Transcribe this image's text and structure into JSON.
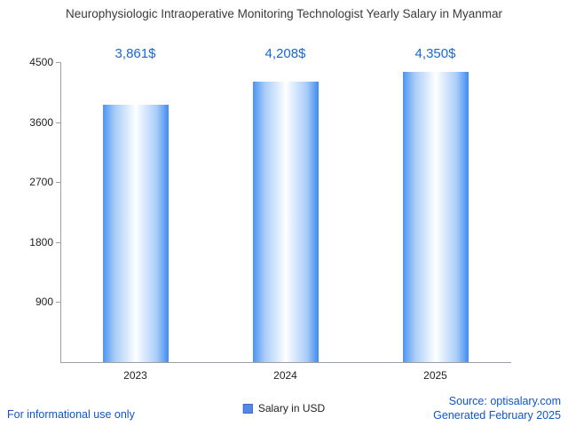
{
  "chart_data": {
    "type": "bar",
    "title": "Neurophysiologic Intraoperative Monitoring Technologist Yearly Salary in Myanmar",
    "categories": [
      "2023",
      "2024",
      "2025"
    ],
    "values": [
      3861,
      4208,
      4350
    ],
    "value_labels": [
      "3,861$",
      "4,208$",
      "4,350$"
    ],
    "ylim": [
      0,
      4500
    ],
    "yticks": [
      900,
      1800,
      2700,
      3600,
      4500
    ],
    "legend": "Salary in USD",
    "bar_color": "#4b94f1",
    "label_color": "#1967d2",
    "grid": false,
    "legend_position": "bottom-center"
  },
  "footer": {
    "left": "For informational use only",
    "source": "Source: optisalary.com",
    "generated": "Generated February 2025"
  }
}
